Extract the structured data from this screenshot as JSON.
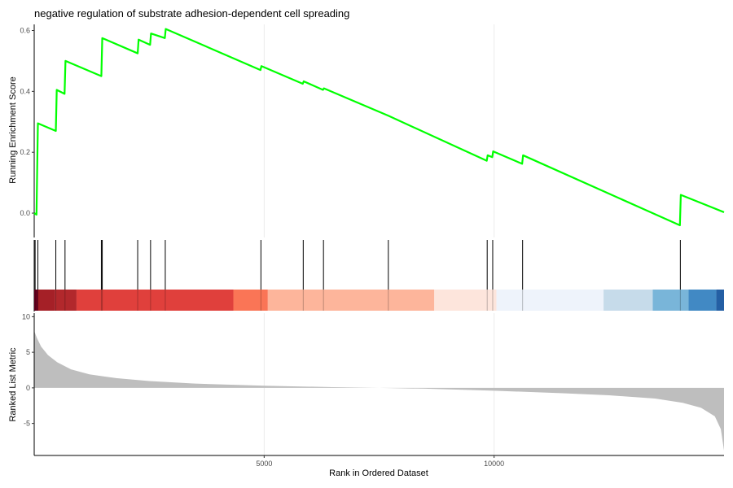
{
  "chart_data": {
    "type": "line",
    "title": "negative regulation of substrate adhesion-dependent cell spreading",
    "xlabel": "Rank in Ordered Dataset",
    "x_range": [
      0,
      15000
    ],
    "x_ticks": [
      5000,
      10000
    ],
    "x_tick_labels": [
      "5000",
      "10000"
    ],
    "line_color": "#00ff00",
    "es_panel": {
      "ylabel": "Running Enrichment Score",
      "ylim": [
        -0.08,
        0.62
      ],
      "y_ticks": [
        0.0,
        0.2,
        0.4,
        0.6
      ],
      "y_tick_labels": [
        "0.0",
        "0.2",
        "0.4",
        "0.6"
      ],
      "points": [
        [
          0,
          0.0
        ],
        [
          50,
          -0.005
        ],
        [
          80,
          0.295
        ],
        [
          470,
          0.27
        ],
        [
          490,
          0.405
        ],
        [
          660,
          0.392
        ],
        [
          680,
          0.5
        ],
        [
          1460,
          0.45
        ],
        [
          1480,
          0.575
        ],
        [
          2250,
          0.525
        ],
        [
          2270,
          0.57
        ],
        [
          2520,
          0.553
        ],
        [
          2540,
          0.59
        ],
        [
          2840,
          0.575
        ],
        [
          2860,
          0.605
        ],
        [
          4920,
          0.47
        ],
        [
          4940,
          0.483
        ],
        [
          5840,
          0.425
        ],
        [
          5860,
          0.433
        ],
        [
          6280,
          0.405
        ],
        [
          6300,
          0.41
        ],
        [
          7700,
          0.32
        ],
        [
          9840,
          0.172
        ],
        [
          9860,
          0.19
        ],
        [
          9960,
          0.184
        ],
        [
          9980,
          0.203
        ],
        [
          10610,
          0.162
        ],
        [
          10630,
          0.19
        ],
        [
          14040,
          -0.04
        ],
        [
          14060,
          0.06
        ],
        [
          15000,
          0.003
        ]
      ]
    },
    "hit_positions": [
      20,
      80,
      470,
      670,
      1460,
      1480,
      2250,
      2530,
      2850,
      4930,
      5850,
      6290,
      7700,
      9850,
      9970,
      10620,
      14050
    ],
    "color_bar": [
      {
        "start": 0,
        "end": 80,
        "color": "#67001f"
      },
      {
        "start": 80,
        "end": 450,
        "color": "#a52027"
      },
      {
        "start": 450,
        "end": 920,
        "color": "#b2282c"
      },
      {
        "start": 920,
        "end": 4330,
        "color": "#e0403c"
      },
      {
        "start": 4330,
        "end": 5080,
        "color": "#fa7556"
      },
      {
        "start": 5080,
        "end": 8700,
        "color": "#fdb59b"
      },
      {
        "start": 8700,
        "end": 10050,
        "color": "#fde5dc"
      },
      {
        "start": 10050,
        "end": 12380,
        "color": "#eef3fb"
      },
      {
        "start": 12380,
        "end": 13450,
        "color": "#c6dbea"
      },
      {
        "start": 13450,
        "end": 14230,
        "color": "#79b5d9"
      },
      {
        "start": 14230,
        "end": 14830,
        "color": "#4189c4"
      },
      {
        "start": 14830,
        "end": 15000,
        "color": "#245fa4"
      }
    ],
    "metric_panel": {
      "ylabel": "Ranked List Metric",
      "ylim": [
        -9.5,
        10.5
      ],
      "y_ticks": [
        -5,
        0,
        5,
        10
      ],
      "y_tick_labels": [
        "-5",
        "0",
        "5",
        "10"
      ],
      "fill_color": "#bebebe",
      "points": [
        [
          0,
          8.0
        ],
        [
          60,
          7.0
        ],
        [
          150,
          5.8
        ],
        [
          300,
          4.6
        ],
        [
          500,
          3.6
        ],
        [
          800,
          2.6
        ],
        [
          1200,
          1.9
        ],
        [
          1800,
          1.35
        ],
        [
          2500,
          0.95
        ],
        [
          3500,
          0.6
        ],
        [
          5000,
          0.3
        ],
        [
          6500,
          0.1
        ],
        [
          7500,
          0.0
        ],
        [
          8500,
          -0.12
        ],
        [
          10000,
          -0.4
        ],
        [
          11500,
          -0.75
        ],
        [
          12500,
          -1.05
        ],
        [
          13500,
          -1.5
        ],
        [
          14100,
          -2.1
        ],
        [
          14500,
          -2.8
        ],
        [
          14800,
          -4.0
        ],
        [
          14930,
          -5.8
        ],
        [
          15000,
          -8.8
        ]
      ]
    }
  }
}
